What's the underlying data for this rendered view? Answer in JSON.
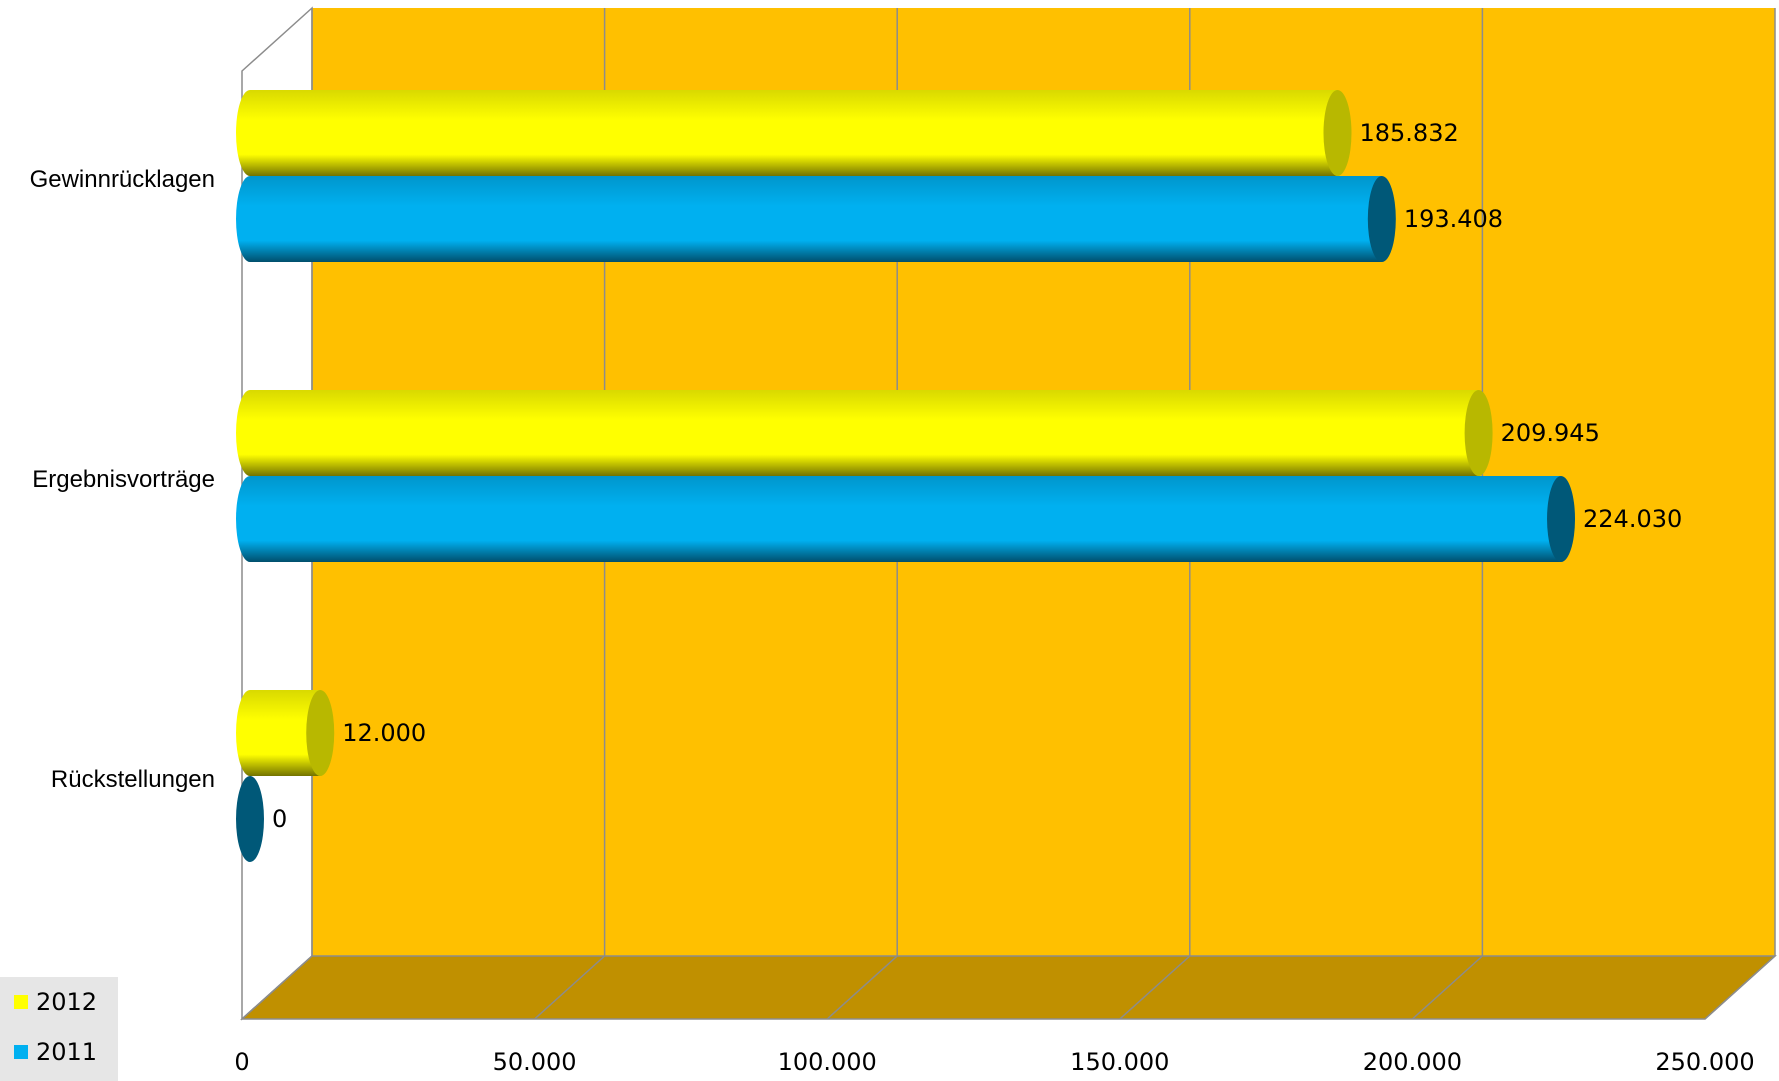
{
  "chart_data": {
    "type": "bar",
    "orientation": "horizontal",
    "three_d": true,
    "categories": [
      "Gewinnrücklagen",
      "Ergebnisvorträge",
      "Rückstellungen"
    ],
    "series": [
      {
        "name": "2012",
        "values": [
          185832,
          209945,
          12000
        ],
        "color": "#ffff00",
        "labels": [
          "185.832",
          "209.945",
          "12.000"
        ]
      },
      {
        "name": "2011",
        "values": [
          193408,
          224030,
          0
        ],
        "color": "#00b0f0",
        "labels": [
          "193.408",
          "224.030",
          "0"
        ]
      }
    ],
    "xlim": [
      0,
      250000
    ],
    "x_ticks": [
      0,
      50000,
      100000,
      150000,
      200000,
      250000
    ],
    "x_tick_labels": [
      "0",
      "50.000",
      "100.000",
      "150.000",
      "200.000",
      "250.000"
    ],
    "grid": true,
    "wall_color": "#ffc000",
    "floor_color": "#c09000",
    "legend_position": "bottom-left"
  }
}
